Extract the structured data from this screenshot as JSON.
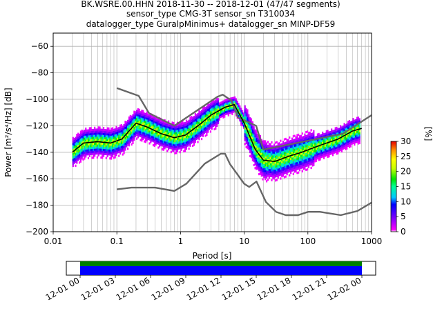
{
  "header": {
    "line1": "BK.WSRE.00.HHN   2018-11-30 -- 2018-12-01  (47/47 segments)",
    "line2": "sensor_type CMG-3T sensor_sn T310034",
    "line3": "datalogger_type GuralpMinimus+ datalogger_sn MINP-DF59"
  },
  "chart_data": [
    {
      "type": "heatmap",
      "xlabel": "Period [s]",
      "ylabel": "Power [m²/s⁴/Hz] [dB]",
      "xscale": "log",
      "xlim": [
        0.01,
        1000
      ],
      "ylim": [
        -200,
        -50
      ],
      "grid": true,
      "xticks": [
        0.01,
        0.1,
        1,
        10,
        100,
        1000
      ],
      "xtick_labels": [
        "0.01",
        "0.1",
        "1",
        "10",
        "100",
        "1000"
      ],
      "yticks": [
        -200,
        -180,
        -160,
        -140,
        -120,
        -100,
        -80,
        -60
      ],
      "ytick_labels": [
        "−200",
        "−180",
        "−160",
        "−140",
        "−120",
        "−100",
        "−80",
        "−60"
      ],
      "colorbar": {
        "label": "[%]",
        "min": 0,
        "max": 30,
        "ticks": [
          0,
          5,
          10,
          15,
          20,
          25,
          30
        ],
        "tick_labels": [
          "0",
          "5",
          "10",
          "15",
          "20",
          "25",
          "30"
        ]
      },
      "series": [
        {
          "role": "mode",
          "color": "#000000",
          "x": [
            0.02,
            0.03,
            0.05,
            0.08,
            0.12,
            0.2,
            0.3,
            0.5,
            0.8,
            1.2,
            2,
            3,
            5,
            7,
            10,
            15,
            20,
            30,
            50,
            80,
            150,
            300,
            500,
            700
          ],
          "y": [
            -140,
            -133,
            -132,
            -133,
            -130,
            -118,
            -121,
            -126,
            -129,
            -127,
            -119,
            -112,
            -106,
            -104,
            -118,
            -138,
            -146,
            -147,
            -143,
            -140,
            -135,
            -130,
            -124,
            -122
          ]
        },
        {
          "role": "new-high-noise-model",
          "color": "#666666",
          "x": [
            0.1,
            0.22,
            0.32,
            0.8,
            3.8,
            4.6,
            6.3,
            7.9,
            15.4,
            20,
            354.8,
            1000
          ],
          "y": [
            -91.5,
            -97.4,
            -110.5,
            -120,
            -98,
            -96.5,
            -101,
            -113.5,
            -120,
            -138,
            -126,
            -112
          ]
        },
        {
          "role": "new-low-noise-model",
          "color": "#666666",
          "x": [
            0.1,
            0.17,
            0.4,
            0.8,
            1.24,
            2.4,
            4.3,
            5,
            6,
            10,
            12,
            15.6,
            21.9,
            31.6,
            45,
            70,
            101,
            154,
            328,
            600,
            1000
          ],
          "y": [
            -168,
            -166.7,
            -166.7,
            -169.2,
            -163.7,
            -148.6,
            -141.1,
            -141.1,
            -149,
            -163.8,
            -166.2,
            -162.1,
            -177.5,
            -185,
            -187.5,
            -187.5,
            -185,
            -185,
            -187.5,
            -184.4,
            -178
          ]
        }
      ]
    },
    {
      "type": "bar",
      "title": "",
      "x_tick_labels": [
        "12-01 00",
        "12-01 03",
        "12-01 06",
        "12-01 09",
        "12-01 12",
        "12-01 15",
        "12-01 18",
        "12-01 21",
        "12-02 00"
      ],
      "x_range": [
        "2018-11-30 21:00",
        "2018-12-02 03:00"
      ],
      "coverage": {
        "start": "12-01 00",
        "end": "12-02 00"
      },
      "series": [
        {
          "role": "data-availability",
          "color": "#008000"
        },
        {
          "role": "psd-segments",
          "color": "#0000ff"
        }
      ]
    }
  ]
}
